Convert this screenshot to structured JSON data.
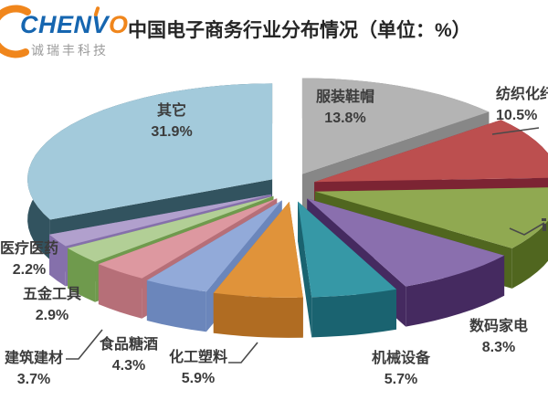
{
  "logo": {
    "brand_main": "CHENV",
    "brand_o": "O",
    "tagline": "诚瑞丰科技",
    "brand_color": "#1666b0",
    "accent_color": "#f0861c",
    "tagline_color": "#9b9b9b"
  },
  "title": "中国电子商务行业分布情况（单位：%）",
  "chart_data": {
    "type": "pie",
    "style": "3d-exploded-pie",
    "unit": "%",
    "background": "#ffffff",
    "label_color": "#3c3c3c",
    "legend": "none",
    "slices_order": "clockwise-from-12-oclock",
    "slices": [
      {
        "label": "服装鞋帽",
        "value": 13.8,
        "value_label": "13.8%",
        "color": "#b4b4b4",
        "side_color": "#878787"
      },
      {
        "label": "纺织化纤",
        "value": 10.5,
        "value_label": "10.5%",
        "color": "#bc4f4f",
        "side_color": "#7c2433",
        "label_clipped_by_image_edge": true
      },
      {
        "label": "",
        "value": 10.8,
        "value_label": "",
        "color": "#90a951",
        "side_color": "#50661f",
        "label_clipped_by_image_edge": true,
        "value_estimated_remainder": true
      },
      {
        "label": "数码家电",
        "value": 8.3,
        "value_label": "8.3%",
        "color": "#8a6fae",
        "side_color": "#452a60"
      },
      {
        "label": "机械设备",
        "value": 5.7,
        "value_label": "5.7%",
        "color": "#3698a6",
        "side_color": "#1a6370"
      },
      {
        "label": "化工塑料",
        "value": 5.9,
        "value_label": "5.9%",
        "color": "#e0933a",
        "side_color": "#b06c22"
      },
      {
        "label": "食品糖酒",
        "value": 4.3,
        "value_label": "4.3%",
        "color": "#92aad9",
        "side_color": "#6b86bb"
      },
      {
        "label": "建筑建材",
        "value": 3.7,
        "value_label": "3.7%",
        "color": "#dd98a0",
        "side_color": "#b66f78"
      },
      {
        "label": "五金工具",
        "value": 2.9,
        "value_label": "2.9%",
        "color": "#b2cf96",
        "side_color": "#6f9a4d"
      },
      {
        "label": "医疗医药",
        "value": 2.2,
        "value_label": "2.2%",
        "color": "#b1a0cd",
        "side_color": "#8570ab"
      },
      {
        "label": "其它",
        "value": 31.9,
        "value_label": "31.9%",
        "color": "#a3cadb",
        "side_color": "#32535f"
      }
    ]
  }
}
